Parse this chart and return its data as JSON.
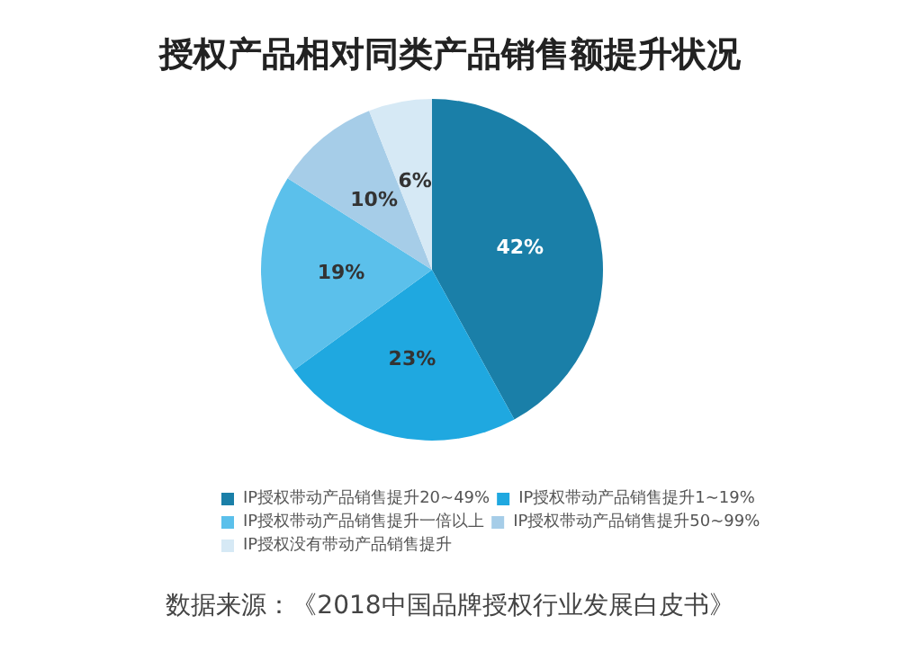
{
  "chart_data": {
    "type": "pie",
    "title": "授权产品相对同类产品销售额提升状况",
    "categories": [
      "IP授权带动产品销售提升20~49%",
      "IP授权带动产品销售提升1~19%",
      "IP授权带动产品销售提升一倍以上",
      "IP授权带动产品销售提升50~99%",
      "IP授权没有带动产品销售提升"
    ],
    "values": [
      42,
      23,
      19,
      10,
      6
    ],
    "colors": [
      "#1a7fa8",
      "#1fa8e0",
      "#5bc0eb",
      "#a6cde8",
      "#d6e9f5"
    ],
    "value_labels": [
      "42%",
      "23%",
      "19%",
      "10%",
      "6%"
    ],
    "legend": "bottom",
    "annotations": [
      "数据来源：《2018中国品牌授权行业发展白皮书》"
    ]
  }
}
